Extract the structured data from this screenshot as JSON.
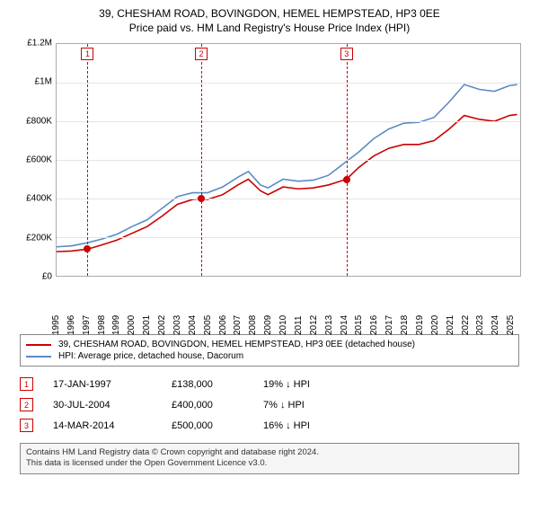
{
  "title": {
    "line1": "39, CHESHAM ROAD, BOVINGDON, HEMEL HEMPSTEAD, HP3 0EE",
    "line2": "Price paid vs. HM Land Registry's House Price Index (HPI)"
  },
  "chart": {
    "type": "line",
    "background_color": "#ffffff",
    "grid_color": "#e4e4e4",
    "border_color": "#aaaaaa",
    "x": {
      "min": 1995,
      "max": 2025.7,
      "ticks": [
        1995,
        1996,
        1997,
        1998,
        1999,
        2000,
        2001,
        2002,
        2003,
        2004,
        2005,
        2006,
        2007,
        2008,
        2009,
        2010,
        2011,
        2012,
        2013,
        2014,
        2015,
        2016,
        2017,
        2018,
        2019,
        2020,
        2021,
        2022,
        2023,
        2024,
        2025
      ],
      "label_fontsize": 10
    },
    "y": {
      "min": 0,
      "max": 1200000,
      "ticks": [
        0,
        200000,
        400000,
        600000,
        800000,
        1000000,
        1200000
      ],
      "tick_labels": [
        "£0",
        "£200K",
        "£400K",
        "£600K",
        "£800K",
        "£1M",
        "£1.2M"
      ],
      "label_fontsize": 10
    },
    "series": [
      {
        "name": "subject_property",
        "color": "#cc0000",
        "line_width": 1.6,
        "points": [
          [
            1995,
            125000
          ],
          [
            1996,
            128000
          ],
          [
            1997.05,
            138000
          ],
          [
            1998,
            160000
          ],
          [
            1999,
            185000
          ],
          [
            2000,
            220000
          ],
          [
            2001,
            255000
          ],
          [
            2002,
            310000
          ],
          [
            2003,
            370000
          ],
          [
            2004,
            395000
          ],
          [
            2004.58,
            400000
          ],
          [
            2005,
            395000
          ],
          [
            2006,
            420000
          ],
          [
            2007,
            470000
          ],
          [
            2007.7,
            500000
          ],
          [
            2008.5,
            440000
          ],
          [
            2009,
            420000
          ],
          [
            2010,
            460000
          ],
          [
            2011,
            450000
          ],
          [
            2012,
            455000
          ],
          [
            2013,
            470000
          ],
          [
            2014.2,
            500000
          ],
          [
            2015,
            560000
          ],
          [
            2016,
            620000
          ],
          [
            2017,
            660000
          ],
          [
            2018,
            680000
          ],
          [
            2019,
            680000
          ],
          [
            2020,
            700000
          ],
          [
            2021,
            760000
          ],
          [
            2022,
            830000
          ],
          [
            2023,
            810000
          ],
          [
            2024,
            800000
          ],
          [
            2025,
            830000
          ],
          [
            2025.5,
            835000
          ]
        ]
      },
      {
        "name": "hpi_dacorum",
        "color": "#5b8bc4",
        "line_width": 1.6,
        "points": [
          [
            1995,
            150000
          ],
          [
            1996,
            155000
          ],
          [
            1997,
            170000
          ],
          [
            1998,
            190000
          ],
          [
            1999,
            215000
          ],
          [
            2000,
            255000
          ],
          [
            2001,
            290000
          ],
          [
            2002,
            350000
          ],
          [
            2003,
            410000
          ],
          [
            2004,
            430000
          ],
          [
            2005,
            430000
          ],
          [
            2006,
            460000
          ],
          [
            2007,
            510000
          ],
          [
            2007.7,
            540000
          ],
          [
            2008.5,
            470000
          ],
          [
            2009,
            455000
          ],
          [
            2010,
            500000
          ],
          [
            2011,
            490000
          ],
          [
            2012,
            495000
          ],
          [
            2013,
            520000
          ],
          [
            2014,
            580000
          ],
          [
            2015,
            640000
          ],
          [
            2016,
            710000
          ],
          [
            2017,
            760000
          ],
          [
            2018,
            790000
          ],
          [
            2019,
            795000
          ],
          [
            2020,
            820000
          ],
          [
            2021,
            900000
          ],
          [
            2022,
            990000
          ],
          [
            2023,
            965000
          ],
          [
            2024,
            955000
          ],
          [
            2025,
            985000
          ],
          [
            2025.5,
            990000
          ]
        ]
      }
    ],
    "sale_markers": [
      {
        "n": "1",
        "x": 1997.05,
        "y": 138000,
        "color": "#cc0000"
      },
      {
        "n": "2",
        "x": 2004.58,
        "y": 400000,
        "color": "#cc0000"
      },
      {
        "n": "3",
        "x": 2014.2,
        "y": 500000,
        "color": "#cc0000"
      }
    ],
    "marker_box_top_pct": 2,
    "vline_color": "#cc0000"
  },
  "legend": {
    "items": [
      {
        "color": "#cc0000",
        "label": "39, CHESHAM ROAD, BOVINGDON, HEMEL HEMPSTEAD, HP3 0EE (detached house)"
      },
      {
        "color": "#5b8bc4",
        "label": "HPI: Average price, detached house, Dacorum"
      }
    ]
  },
  "sales": [
    {
      "n": "1",
      "date": "17-JAN-1997",
      "price": "£138,000",
      "diff_pct": "19%",
      "diff_dir": "↓",
      "diff_suffix": "HPI"
    },
    {
      "n": "2",
      "date": "30-JUL-2004",
      "price": "£400,000",
      "diff_pct": "7%",
      "diff_dir": "↓",
      "diff_suffix": "HPI"
    },
    {
      "n": "3",
      "date": "14-MAR-2014",
      "price": "£500,000",
      "diff_pct": "16%",
      "diff_dir": "↓",
      "diff_suffix": "HPI"
    }
  ],
  "footer": {
    "line1": "Contains HM Land Registry data © Crown copyright and database right 2024.",
    "line2": "This data is licensed under the Open Government Licence v3.0."
  },
  "colors": {
    "marker_box_border": "#cc0000",
    "marker_box_text": "#cc0000"
  }
}
